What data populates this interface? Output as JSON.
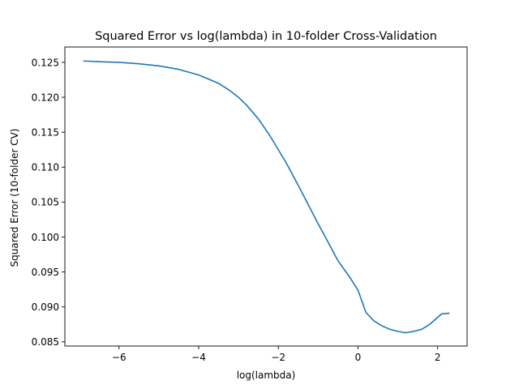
{
  "chart_data": {
    "type": "line",
    "title": "Squared Error vs log(lambda) in 10-folder Cross-Validation",
    "xlabel": "log(lambda)",
    "ylabel": "Squared Error (10-folder CV)",
    "xlim": [
      -7.36,
      2.74
    ],
    "ylim": [
      0.0844,
      0.1272
    ],
    "xticks": [
      -6,
      -4,
      -2,
      0,
      2
    ],
    "xtick_labels": [
      "−6",
      "−4",
      "−2",
      "0",
      "2"
    ],
    "yticks": [
      0.085,
      0.09,
      0.095,
      0.1,
      0.105,
      0.11,
      0.115,
      0.12,
      0.125
    ],
    "ytick_labels": [
      "0.085",
      "0.090",
      "0.095",
      "0.100",
      "0.105",
      "0.110",
      "0.115",
      "0.120",
      "0.125"
    ],
    "grid": false,
    "series": [
      {
        "color": "#1f77b4",
        "x": [
          -6.9,
          -6.5,
          -6.0,
          -5.5,
          -5.0,
          -4.5,
          -4.0,
          -3.5,
          -3.2,
          -3.0,
          -2.8,
          -2.5,
          -2.2,
          -2.0,
          -1.8,
          -1.5,
          -1.2,
          -1.0,
          -0.8,
          -0.5,
          -0.2,
          0.0,
          0.2,
          0.4,
          0.6,
          0.8,
          1.0,
          1.2,
          1.4,
          1.6,
          1.8,
          2.0,
          2.1,
          2.3
        ],
        "y": [
          0.1252,
          0.1251,
          0.125,
          0.1248,
          0.1245,
          0.124,
          0.1232,
          0.122,
          0.1209,
          0.12,
          0.1189,
          0.1169,
          0.1144,
          0.1125,
          0.1106,
          0.1074,
          0.1041,
          0.1019,
          0.0998,
          0.0966,
          0.0942,
          0.0924,
          0.0892,
          0.088,
          0.0873,
          0.0868,
          0.0865,
          0.0863,
          0.0865,
          0.0868,
          0.0875,
          0.0885,
          0.089,
          0.0891
        ]
      }
    ]
  }
}
